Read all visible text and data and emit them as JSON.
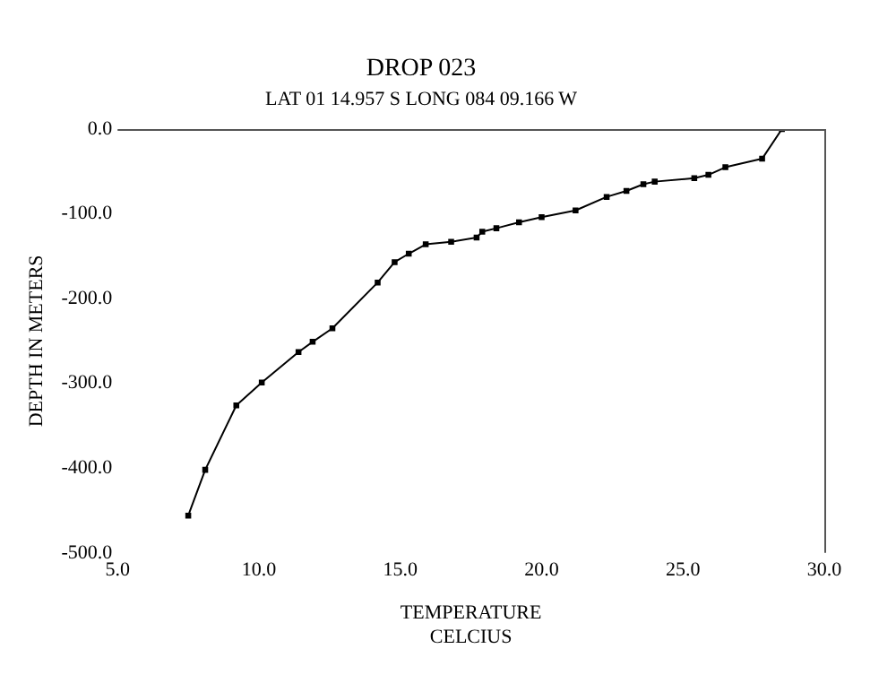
{
  "chart_data": {
    "type": "line",
    "title": "DROP 023",
    "subtitle": "LAT 01 14.957 S LONG 084 09.166 W",
    "xlabel": "TEMPERATURE",
    "ylabel": "DEPTH IN METERS",
    "annotations": [
      "CELCIUS"
    ],
    "x": [
      7.5,
      8.1,
      9.2,
      10.1,
      11.4,
      11.9,
      12.6,
      14.2,
      14.8,
      15.3,
      15.9,
      16.8,
      17.7,
      17.9,
      18.4,
      19.2,
      20.0,
      21.2,
      22.3,
      23.0,
      23.6,
      24.0,
      25.4,
      25.9,
      26.5,
      27.8,
      28.5
    ],
    "series": [
      {
        "color": "#000000",
        "values": [
          -456,
          -402,
          -326,
          -299,
          -263,
          -251,
          -235,
          -181,
          -157,
          -147,
          -136,
          -133,
          -128,
          -121,
          -117,
          -110,
          -104,
          -96,
          -80,
          -73,
          -65,
          -62,
          -58,
          -54,
          -45,
          -35,
          0
        ]
      }
    ],
    "xlim": [
      5,
      30
    ],
    "ylim": [
      -500,
      0
    ],
    "xticks": [
      {
        "value": 5,
        "label": "5.0"
      },
      {
        "value": 10,
        "label": "10.0"
      },
      {
        "value": 15,
        "label": "15.0"
      },
      {
        "value": 20,
        "label": "20.0"
      },
      {
        "value": 25,
        "label": "25.0"
      },
      {
        "value": 30,
        "label": "30.0"
      }
    ],
    "yticks": [
      {
        "value": -500,
        "label": "-500.0"
      },
      {
        "value": -400,
        "label": "-400.0"
      },
      {
        "value": -300,
        "label": "-300.0"
      },
      {
        "value": -200,
        "label": "-200.0"
      },
      {
        "value": -100,
        "label": "-100.0"
      },
      {
        "value": 0,
        "label": "0.0"
      }
    ],
    "grid": false,
    "legend": false,
    "marker": "square",
    "line_style": "solid"
  }
}
